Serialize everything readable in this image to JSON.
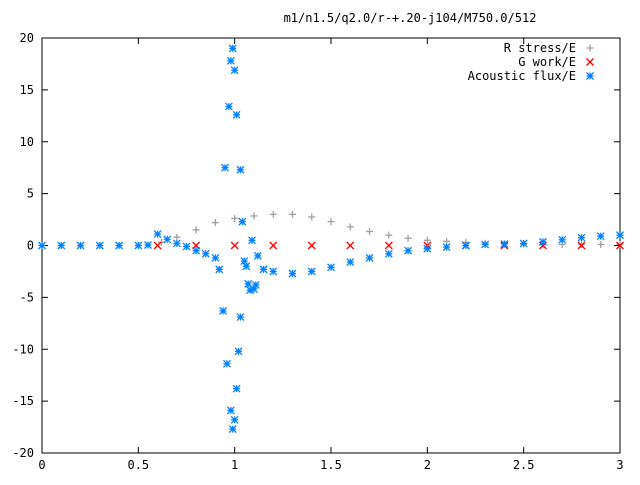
{
  "chart_data": {
    "type": "scatter",
    "title": "m1/n1.5/q2.0/r-+.20-j104/M750.0/512",
    "xlabel": "",
    "ylabel": "",
    "xlim": [
      0,
      3
    ],
    "ylim": [
      -20,
      20
    ],
    "x_ticks": [
      0,
      0.5,
      1,
      1.5,
      2,
      2.5,
      3
    ],
    "x_tick_labels": [
      "0",
      "0.5",
      "1",
      "1.5",
      "2",
      "2.5",
      "3"
    ],
    "y_ticks": [
      -20,
      -15,
      -10,
      -5,
      0,
      5,
      10,
      15,
      20
    ],
    "y_tick_labels": [
      "-20",
      "-15",
      "-10",
      "-5",
      "0",
      "5",
      "10",
      "15",
      "20"
    ],
    "grid": false,
    "legend_position": "top-right",
    "series": [
      {
        "name": "R stress/E",
        "marker": "+",
        "color": "#a0a0a0",
        "points": [
          [
            0.62,
            0.3
          ],
          [
            0.7,
            0.8
          ],
          [
            0.8,
            1.5
          ],
          [
            0.9,
            2.2
          ],
          [
            1.0,
            2.6
          ],
          [
            1.1,
            2.85
          ],
          [
            1.2,
            3.0
          ],
          [
            1.3,
            3.0
          ],
          [
            1.4,
            2.75
          ],
          [
            1.5,
            2.3
          ],
          [
            1.6,
            1.8
          ],
          [
            1.7,
            1.35
          ],
          [
            1.8,
            1.0
          ],
          [
            1.9,
            0.7
          ],
          [
            2.0,
            0.5
          ],
          [
            2.1,
            0.4
          ],
          [
            2.2,
            0.3
          ],
          [
            2.3,
            0.22
          ],
          [
            2.4,
            0.16
          ],
          [
            2.5,
            0.12
          ],
          [
            2.6,
            0.1
          ],
          [
            2.7,
            0.1
          ],
          [
            2.8,
            0.1
          ],
          [
            2.9,
            0.1
          ],
          [
            3.0,
            0.1
          ]
        ]
      },
      {
        "name": "G work/E",
        "marker": "x",
        "color": "#ff0000",
        "points": [
          [
            0.6,
            0.0
          ],
          [
            0.8,
            0.0
          ],
          [
            1.0,
            0.0
          ],
          [
            1.2,
            0.0
          ],
          [
            1.4,
            0.0
          ],
          [
            1.6,
            0.0
          ],
          [
            1.8,
            0.0
          ],
          [
            2.0,
            0.0
          ],
          [
            2.2,
            0.0
          ],
          [
            2.4,
            0.0
          ],
          [
            2.6,
            0.0
          ],
          [
            2.8,
            0.0
          ],
          [
            3.0,
            0.0
          ]
        ]
      },
      {
        "name": "Acoustic flux/E",
        "marker": "*",
        "color": "#0080ff",
        "points": [
          [
            0.0,
            0.0
          ],
          [
            0.1,
            0.0
          ],
          [
            0.2,
            0.0
          ],
          [
            0.3,
            0.0
          ],
          [
            0.4,
            0.0
          ],
          [
            0.5,
            0.0
          ],
          [
            0.55,
            0.05
          ],
          [
            0.6,
            1.1
          ],
          [
            0.65,
            0.6
          ],
          [
            0.7,
            0.2
          ],
          [
            0.75,
            -0.1
          ],
          [
            0.8,
            -0.5
          ],
          [
            0.85,
            -0.8
          ],
          [
            0.9,
            -1.2
          ],
          [
            0.92,
            -2.3
          ],
          [
            0.94,
            -6.3
          ],
          [
            0.95,
            7.5
          ],
          [
            0.96,
            -11.4
          ],
          [
            0.97,
            13.4
          ],
          [
            0.98,
            -15.9
          ],
          [
            0.98,
            17.8
          ],
          [
            0.99,
            -17.7
          ],
          [
            0.99,
            19.0
          ],
          [
            1.0,
            -16.8
          ],
          [
            1.0,
            16.9
          ],
          [
            1.01,
            -13.8
          ],
          [
            1.01,
            12.6
          ],
          [
            1.02,
            -10.2
          ],
          [
            1.03,
            7.3
          ],
          [
            1.03,
            -6.9
          ],
          [
            1.04,
            2.3
          ],
          [
            1.05,
            -1.5
          ],
          [
            1.06,
            -2.0
          ],
          [
            1.07,
            -3.7
          ],
          [
            1.08,
            -4.3
          ],
          [
            1.09,
            0.5
          ],
          [
            1.1,
            -4.2
          ],
          [
            1.11,
            -3.8
          ],
          [
            1.12,
            -1.0
          ],
          [
            1.15,
            -2.3
          ],
          [
            1.2,
            -2.5
          ],
          [
            1.3,
            -2.7
          ],
          [
            1.4,
            -2.5
          ],
          [
            1.5,
            -2.1
          ],
          [
            1.6,
            -1.6
          ],
          [
            1.7,
            -1.2
          ],
          [
            1.8,
            -0.8
          ],
          [
            1.9,
            -0.5
          ],
          [
            2.0,
            -0.3
          ],
          [
            2.1,
            -0.15
          ],
          [
            2.2,
            0.0
          ],
          [
            2.3,
            0.1
          ],
          [
            2.4,
            0.15
          ],
          [
            2.5,
            0.2
          ],
          [
            2.6,
            0.35
          ],
          [
            2.7,
            0.55
          ],
          [
            2.8,
            0.75
          ],
          [
            2.9,
            0.9
          ],
          [
            3.0,
            1.0
          ]
        ]
      }
    ]
  }
}
